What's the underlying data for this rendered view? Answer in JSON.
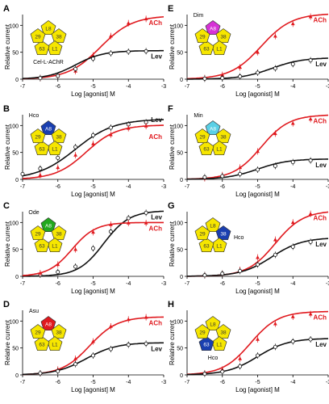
{
  "chart_data": [
    {
      "panel": "A",
      "type": "line",
      "xlabel": "Log [agonist] M",
      "ylabel": "Relative current",
      "xlim": [
        -7,
        -3
      ],
      "ylim": [
        0,
        120
      ],
      "xticks": [
        -7,
        -6,
        -5,
        -4,
        -3
      ],
      "yticks": [
        0,
        50,
        100
      ],
      "complex_label": "Cel-L-AChR",
      "complex_label_position": "bottom",
      "subunits": [
        "L8",
        "38",
        "L1",
        "63",
        "29"
      ],
      "highlight": null,
      "series": [
        {
          "name": "ACh",
          "color": "#e0191e",
          "marker": "triangle",
          "fit": {
            "bottom": 0,
            "top": 118,
            "ec50": -4.8,
            "hill": 0.95
          },
          "x": [
            -6.5,
            -6,
            -5.5,
            -5,
            -4.5,
            -4,
            -3.5
          ],
          "y": [
            2,
            6,
            15,
            44,
            80,
            104,
            112
          ]
        },
        {
          "name": "Lev",
          "color": "#111111",
          "marker": "circle",
          "fit": {
            "bottom": 0,
            "top": 53,
            "ec50": -5.5,
            "hill": 1.1
          },
          "x": [
            -6.5,
            -6,
            -5.5,
            -5,
            -4.5,
            -4,
            -3.5
          ],
          "y": [
            2,
            6,
            19,
            38,
            48,
            51,
            52
          ]
        }
      ]
    },
    {
      "panel": "B",
      "type": "line",
      "xlabel": "Log [agonist] M",
      "ylabel": "Relative current",
      "xlim": [
        -7,
        -3
      ],
      "ylim": [
        0,
        120
      ],
      "xticks": [
        -7,
        -6,
        -5,
        -4,
        -3
      ],
      "yticks": [
        0,
        50,
        100
      ],
      "complex_label": "Hco",
      "complex_label_position": "top",
      "subunits": [
        "A8",
        "38",
        "L1",
        "63",
        "29"
      ],
      "highlight": "#1a3fb0",
      "series": [
        {
          "name": "Lev",
          "color": "#111111",
          "marker": "circle",
          "fit": {
            "bottom": 0,
            "top": 112,
            "ec50": -5.5,
            "hill": 0.8
          },
          "x": [
            -7,
            -6.5,
            -6,
            -5.5,
            -5,
            -4.5,
            -4,
            -3.5
          ],
          "y": [
            10,
            20,
            40,
            60,
            82,
            96,
            102,
            106
          ]
        },
        {
          "name": "ACh",
          "color": "#e0191e",
          "marker": "triangle",
          "fit": {
            "bottom": 0,
            "top": 101,
            "ec50": -5.2,
            "hill": 1.0
          },
          "x": [
            -6.5,
            -6,
            -5.5,
            -5,
            -4.5,
            -4,
            -3.5
          ],
          "y": [
            8,
            22,
            45,
            66,
            83,
            95,
            99
          ]
        }
      ]
    },
    {
      "panel": "C",
      "type": "line",
      "xlabel": "Log [agonist] M",
      "ylabel": "Relative current",
      "xlim": [
        -7,
        -3
      ],
      "ylim": [
        0,
        120
      ],
      "xticks": [
        -7,
        -6,
        -5,
        -4,
        -3
      ],
      "yticks": [
        0,
        50,
        100
      ],
      "complex_label": "Ode",
      "complex_label_position": "top",
      "subunits": [
        "A8",
        "38",
        "L1",
        "63",
        "29"
      ],
      "highlight": "#22a81e",
      "series": [
        {
          "name": "Lev",
          "color": "#111111",
          "marker": "circle",
          "fit": {
            "bottom": 0,
            "top": 122,
            "ec50": -4.7,
            "hill": 1.2
          },
          "x": [
            -6.5,
            -6,
            -5.5,
            -5,
            -4.5,
            -4,
            -3.5
          ],
          "y": [
            3,
            8,
            18,
            52,
            83,
            108,
            118
          ]
        },
        {
          "name": "ACh",
          "color": "#e0191e",
          "marker": "triangle",
          "fit": {
            "bottom": 0,
            "top": 100,
            "ec50": -5.6,
            "hill": 1.3
          },
          "x": [
            -6.5,
            -6,
            -5.5,
            -5,
            -4.5,
            -4,
            -3.5
          ],
          "y": [
            6,
            22,
            50,
            82,
            96,
            99,
            99
          ]
        }
      ]
    },
    {
      "panel": "D",
      "type": "line",
      "xlabel": "Log [agonist] M",
      "ylabel": "Relative current",
      "xlim": [
        -7,
        -3
      ],
      "ylim": [
        0,
        120
      ],
      "xticks": [
        -7,
        -6,
        -5,
        -4,
        -3
      ],
      "yticks": [
        0,
        50,
        100
      ],
      "complex_label": "Asu",
      "complex_label_position": "top",
      "subunits": [
        "A8",
        "38",
        "L1",
        "63",
        "29"
      ],
      "highlight": "#e0191e",
      "series": [
        {
          "name": "ACh",
          "color": "#e0191e",
          "marker": "triangle",
          "fit": {
            "bottom": 0,
            "top": 108,
            "ec50": -5.1,
            "hill": 1.1
          },
          "x": [
            -6.5,
            -6,
            -5.5,
            -5,
            -4.5,
            -4,
            -3.5
          ],
          "y": [
            3,
            10,
            30,
            62,
            90,
            103,
            107
          ]
        },
        {
          "name": "Lev",
          "color": "#111111",
          "marker": "circle",
          "fit": {
            "bottom": 0,
            "top": 60,
            "ec50": -5.2,
            "hill": 1.0
          },
          "x": [
            -6.5,
            -6,
            -5.5,
            -5,
            -4.5,
            -4,
            -3.5
          ],
          "y": [
            3,
            7,
            20,
            36,
            48,
            56,
            58
          ]
        }
      ]
    },
    {
      "panel": "E",
      "type": "line",
      "xlabel": "Log [agonist] M",
      "ylabel": "Relative current",
      "xlim": [
        -7,
        -3
      ],
      "ylim": [
        0,
        120
      ],
      "xticks": [
        -7,
        -6,
        -5,
        -4,
        -3
      ],
      "yticks": [
        0,
        50,
        100
      ],
      "complex_label": "Dim",
      "complex_label_position": "top",
      "subunits": [
        "A8",
        "38",
        "L1",
        "63",
        "29"
      ],
      "highlight": "#d633d6",
      "series": [
        {
          "name": "ACh",
          "color": "#e0191e",
          "marker": "triangle",
          "fit": {
            "bottom": 0,
            "top": 122,
            "ec50": -4.9,
            "hill": 1.0
          },
          "x": [
            -6.5,
            -6,
            -5.5,
            -5,
            -4.5,
            -4,
            -3.5
          ],
          "y": [
            2,
            8,
            22,
            50,
            80,
            103,
            116
          ]
        },
        {
          "name": "Lev",
          "color": "#111111",
          "marker": "circle",
          "fit": {
            "bottom": 0,
            "top": 40,
            "ec50": -4.6,
            "hill": 1.0
          },
          "x": [
            -6.5,
            -6,
            -5.5,
            -5,
            -4.5,
            -4,
            -3.5
          ],
          "y": [
            1,
            2,
            5,
            12,
            20,
            28,
            35
          ]
        }
      ]
    },
    {
      "panel": "F",
      "type": "line",
      "xlabel": "Log [agonist] M",
      "ylabel": "Relative current",
      "xlim": [
        -7,
        -3
      ],
      "ylim": [
        0,
        120
      ],
      "xticks": [
        -7,
        -6,
        -5,
        -4,
        -3
      ],
      "yticks": [
        0,
        50,
        100
      ],
      "complex_label": "Min",
      "complex_label_position": "top",
      "subunits": [
        "A8",
        "38",
        "L1",
        "63",
        "29"
      ],
      "highlight": "#5bd0e6",
      "series": [
        {
          "name": "ACh",
          "color": "#e0191e",
          "marker": "triangle",
          "fit": {
            "bottom": 0,
            "top": 120,
            "ec50": -4.9,
            "hill": 1.1
          },
          "x": [
            -6.5,
            -6,
            -5.5,
            -5,
            -4.5,
            -4,
            -3.5
          ],
          "y": [
            2,
            8,
            22,
            52,
            85,
            104,
            112
          ]
        },
        {
          "name": "Lev",
          "color": "#111111",
          "marker": "circle",
          "fit": {
            "bottom": 0,
            "top": 38,
            "ec50": -5.0,
            "hill": 1.0
          },
          "x": [
            -6.5,
            -6,
            -5.5,
            -5,
            -4.5,
            -4,
            -3.5
          ],
          "y": [
            4,
            6,
            10,
            18,
            25,
            32,
            35
          ]
        }
      ]
    },
    {
      "panel": "G",
      "type": "line",
      "xlabel": "Log [agonist] M",
      "ylabel": "Relative current",
      "xlim": [
        -7,
        -3
      ],
      "ylim": [
        0,
        120
      ],
      "xticks": [
        -7,
        -6,
        -5,
        -4,
        -3
      ],
      "yticks": [
        0,
        50,
        100
      ],
      "complex_label": "Hco",
      "complex_label_position": "right",
      "subunits": [
        "L8",
        "38",
        "L1",
        "63",
        "29"
      ],
      "highlight": "#1a3fb0",
      "highlight_index": 1,
      "series": [
        {
          "name": "ACh",
          "color": "#e0191e",
          "marker": "triangle",
          "fit": {
            "bottom": 0,
            "top": 122,
            "ec50": -4.5,
            "hill": 1.1
          },
          "x": [
            -6.5,
            -6,
            -5.5,
            -5,
            -4.5,
            -4,
            -3.5
          ],
          "y": [
            2,
            5,
            12,
            35,
            68,
            100,
            116
          ]
        },
        {
          "name": "Lev",
          "color": "#111111",
          "marker": "circle",
          "fit": {
            "bottom": 0,
            "top": 72,
            "ec50": -4.6,
            "hill": 1.0
          },
          "x": [
            -6.5,
            -6,
            -5.5,
            -5,
            -4.5,
            -4,
            -3.5
          ],
          "y": [
            2,
            5,
            10,
            22,
            40,
            55,
            64
          ]
        }
      ]
    },
    {
      "panel": "H",
      "type": "line",
      "xlabel": "Log [agonist] M",
      "ylabel": "Relative current",
      "xlim": [
        -7,
        -3
      ],
      "ylim": [
        0,
        120
      ],
      "xticks": [
        -7,
        -6,
        -5,
        -4,
        -3
      ],
      "yticks": [
        0,
        50,
        100
      ],
      "complex_label": "Hco",
      "complex_label_position": "bottom",
      "subunits": [
        "L8",
        "38",
        "L1",
        "63",
        "29"
      ],
      "highlight": "#1a3fb0",
      "highlight_index": 3,
      "series": [
        {
          "name": "ACh",
          "color": "#e0191e",
          "marker": "triangle",
          "fit": {
            "bottom": 0,
            "top": 118,
            "ec50": -5.2,
            "hill": 1.1
          },
          "x": [
            -6.5,
            -6,
            -5.5,
            -5,
            -4.5,
            -4,
            -3.5
          ],
          "y": [
            3,
            10,
            30,
            66,
            95,
            108,
            113
          ]
        },
        {
          "name": "Lev",
          "color": "#111111",
          "marker": "circle",
          "fit": {
            "bottom": 0,
            "top": 68,
            "ec50": -5.0,
            "hill": 1.0
          },
          "x": [
            -6.5,
            -6,
            -5.5,
            -5,
            -4.5,
            -4,
            -3.5
          ],
          "y": [
            2,
            6,
            16,
            36,
            52,
            62,
            66
          ]
        }
      ]
    }
  ]
}
